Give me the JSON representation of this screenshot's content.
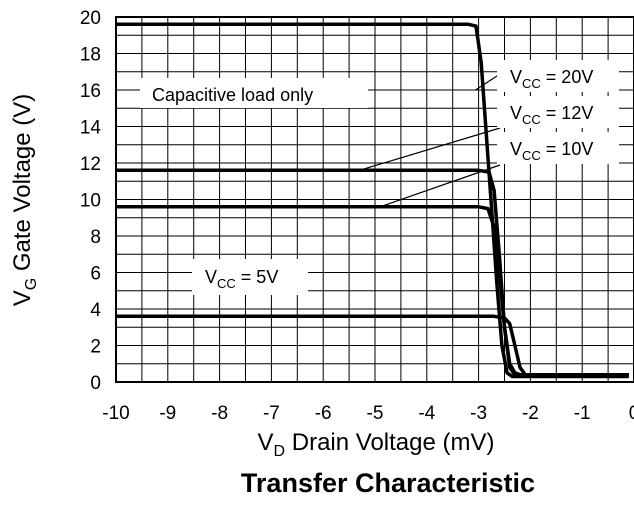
{
  "chart_data": {
    "type": "line",
    "title": "Transfer Characteristic",
    "xlabel": {
      "main": "V",
      "sub": "D",
      "rest": " Drain Voltage (mV)"
    },
    "ylabel": {
      "main": "V",
      "sub": "G",
      "rest": " Gate Voltage (V)"
    },
    "xlim": [
      -10,
      0
    ],
    "ylim": [
      0,
      20
    ],
    "xticks": [
      "-10",
      "-9",
      "-8",
      "-7",
      "-6",
      "-5",
      "-4",
      "-3",
      "-2",
      "-1",
      "0"
    ],
    "yticks": [
      "0",
      "2",
      "4",
      "6",
      "8",
      "10",
      "12",
      "14",
      "16",
      "18",
      "20"
    ],
    "grid": true,
    "annotations": {
      "load_note": "Capacitive load only",
      "vcc20": {
        "main": "V",
        "sub": "CC",
        "rest": " = 20V"
      },
      "vcc12": {
        "main": "V",
        "sub": "CC",
        "rest": " = 12V"
      },
      "vcc10": {
        "main": "V",
        "sub": "CC",
        "rest": " = 10V"
      },
      "vcc5": {
        "main": "V",
        "sub": "CC",
        "rest": " = 5V"
      }
    },
    "series": [
      {
        "x": [
          -10,
          -3.2,
          -3.05,
          -2.95,
          -2.85,
          -2.75,
          -2.65,
          -2.55,
          -2.45,
          -2.35,
          -2.2,
          -0.1
        ],
        "y": [
          19.6,
          19.6,
          19.5,
          17.5,
          13.5,
          9.5,
          5.5,
          2.0,
          0.5,
          0.3,
          0.3,
          0.3
        ]
      },
      {
        "x": [
          -10,
          -3.0,
          -2.8,
          -2.7,
          -2.6,
          -2.5,
          -2.4,
          -2.3,
          -0.1
        ],
        "y": [
          11.6,
          11.6,
          11.5,
          10.5,
          7.0,
          3.0,
          0.8,
          0.4,
          0.4
        ]
      },
      {
        "x": [
          -10,
          -3.0,
          -2.82,
          -2.7,
          -2.6,
          -2.5,
          -2.4,
          -2.3,
          -2.2,
          -0.1
        ],
        "y": [
          9.6,
          9.6,
          9.5,
          8.5,
          6.0,
          3.0,
          1.0,
          0.5,
          0.4,
          0.4
        ]
      },
      {
        "x": [
          -10,
          -2.7,
          -2.5,
          -2.4,
          -2.3,
          -2.2,
          -2.1,
          -0.1
        ],
        "y": [
          3.6,
          3.6,
          3.5,
          3.2,
          2.0,
          0.8,
          0.4,
          0.4
        ]
      }
    ]
  }
}
